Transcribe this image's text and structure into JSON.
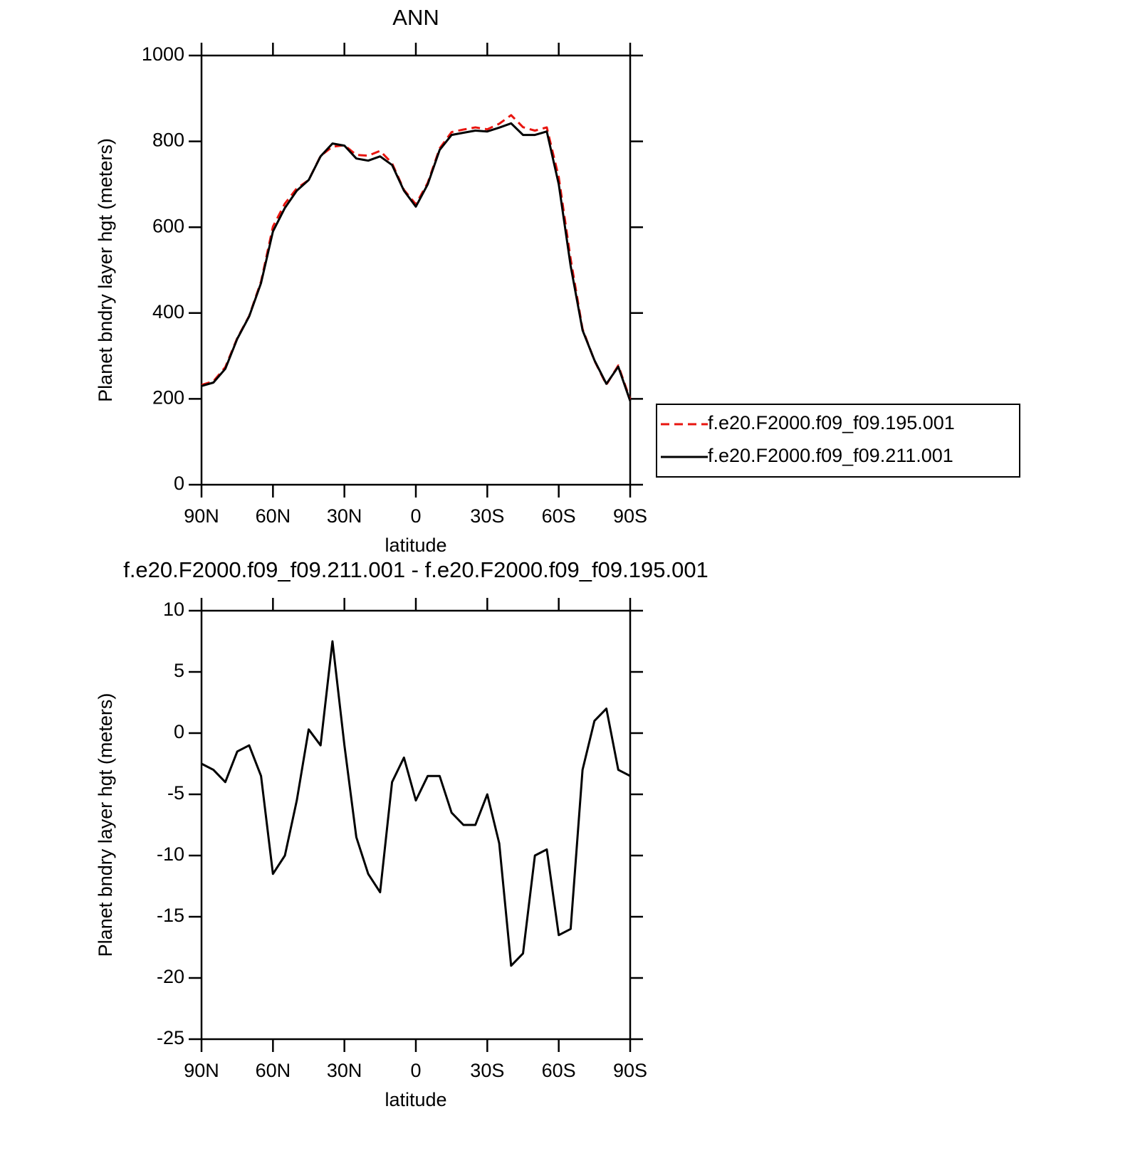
{
  "chart_data": [
    {
      "type": "line",
      "title": "ANN",
      "xlabel": "latitude",
      "ylabel": "Planet bndry layer hgt (meters)",
      "x": [
        90,
        85,
        80,
        75,
        70,
        65,
        60,
        55,
        50,
        45,
        40,
        35,
        30,
        25,
        20,
        15,
        10,
        5,
        0,
        -5,
        -10,
        -15,
        -20,
        -25,
        -30,
        -35,
        -40,
        -45,
        -50,
        -55,
        -60,
        -65,
        -70,
        -75,
        -80,
        -85,
        -90
      ],
      "xlim": [
        90,
        -90
      ],
      "xticks": [
        {
          "value": 90,
          "label": "90N"
        },
        {
          "value": 60,
          "label": "60N"
        },
        {
          "value": 30,
          "label": "30N"
        },
        0,
        {
          "value": -30,
          "label": "30S"
        },
        {
          "value": -60,
          "label": "60S"
        },
        {
          "value": -90,
          "label": "90S"
        }
      ],
      "ylim": [
        0,
        1000
      ],
      "yticks": [
        0,
        200,
        400,
        600,
        800,
        1000
      ],
      "legend": "right",
      "series": [
        {
          "name": "f.e20.F2000.f09_f09.195.001",
          "color": "#e8150f",
          "linestyle": "dashed",
          "values": [
            232.5,
            241,
            274,
            341.5,
            393,
            473.5,
            601.5,
            655,
            690.5,
            710,
            766,
            787.5,
            791,
            768.5,
            766.5,
            778,
            749,
            687,
            653.5,
            703.5,
            783.5,
            821.5,
            827.5,
            832.5,
            828,
            841,
            861,
            833,
            825,
            832.5,
            716.5,
            526,
            363,
            289,
            233,
            278,
            198.5
          ]
        },
        {
          "name": "f.e20.F2000.f09_f09.211.001",
          "color": "#000000",
          "linestyle": "solid",
          "values": [
            230,
            238,
            270,
            340,
            392,
            470,
            590,
            645,
            685,
            710,
            765,
            795,
            790,
            760,
            755,
            765,
            745,
            685,
            648,
            700,
            780,
            815,
            820,
            825,
            823,
            832,
            842,
            815,
            815,
            823,
            700,
            510,
            360,
            290,
            235,
            275,
            195
          ]
        }
      ]
    },
    {
      "type": "line",
      "title": "f.e20.F2000.f09_f09.211.001 - f.e20.F2000.f09_f09.195.001",
      "xlabel": "latitude",
      "ylabel": "Planet bndry layer hgt (meters)",
      "x": [
        90,
        85,
        80,
        75,
        70,
        65,
        60,
        55,
        50,
        45,
        40,
        35,
        30,
        25,
        20,
        15,
        10,
        5,
        0,
        -5,
        -10,
        -15,
        -20,
        -25,
        -30,
        -35,
        -40,
        -45,
        -50,
        -55,
        -60,
        -65,
        -70,
        -75,
        -80,
        -85,
        -90
      ],
      "xlim": [
        90,
        -90
      ],
      "xticks": [
        {
          "value": 90,
          "label": "90N"
        },
        {
          "value": 60,
          "label": "60N"
        },
        {
          "value": 30,
          "label": "30N"
        },
        0,
        {
          "value": -30,
          "label": "30S"
        },
        {
          "value": -60,
          "label": "60S"
        },
        {
          "value": -90,
          "label": "90S"
        }
      ],
      "ylim": [
        -25,
        10
      ],
      "yticks": [
        -25,
        -20,
        -15,
        -10,
        -5,
        0,
        5,
        10
      ],
      "color": "#000000",
      "values": [
        -2.5,
        -3,
        -4,
        -1.5,
        -1,
        -3.5,
        -11.5,
        -10,
        -5.5,
        0.3,
        -1,
        7.5,
        -1,
        -8.5,
        -11.5,
        -13,
        -4,
        -2,
        -5.5,
        -3.5,
        -3.5,
        -6.5,
        -7.5,
        -7.5,
        -5,
        -9,
        -19,
        -18,
        -10,
        -9.5,
        -16.5,
        -16,
        -3,
        1,
        2,
        -3,
        -3.5
      ]
    }
  ]
}
